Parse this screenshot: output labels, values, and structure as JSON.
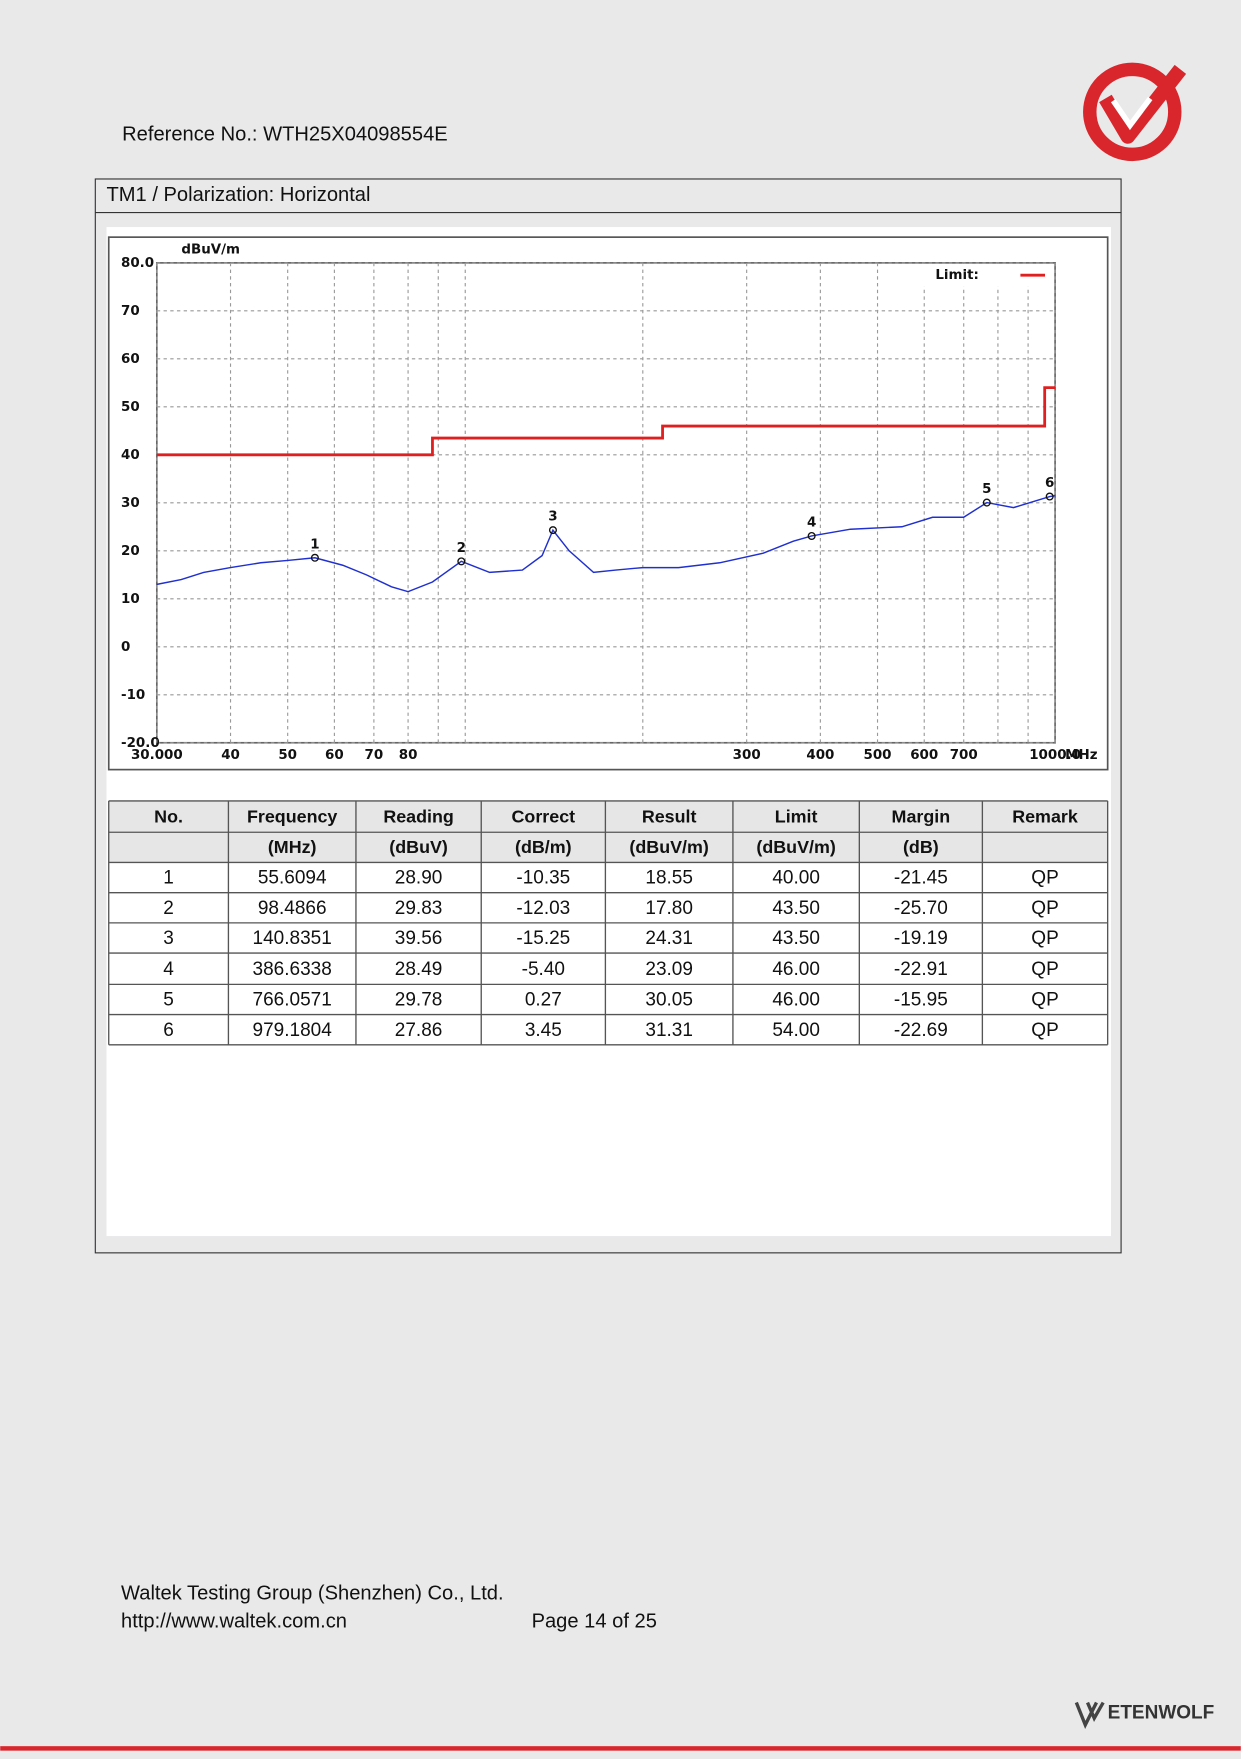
{
  "header": {
    "reference": "Reference No.: WTH25X04098554E"
  },
  "section": {
    "title": "TM1 / Polarization: Horizontal"
  },
  "chart_data": {
    "type": "line",
    "y_label": "dBuV/m",
    "x_unit": "MHz",
    "xscale": "log",
    "xlim": [
      30,
      1000
    ],
    "ylim": [
      -20,
      80
    ],
    "xticks": [
      {
        "value": 30,
        "label": "30.000"
      },
      40,
      50,
      60,
      70,
      80,
      300,
      400,
      500,
      600,
      700,
      {
        "value": 1000,
        "label": "1000.0"
      }
    ],
    "xgrid_minor": [
      90,
      100,
      200,
      800,
      900
    ],
    "yticks": [
      {
        "value": -20,
        "label": "-20.0"
      },
      -10,
      0,
      10,
      20,
      30,
      40,
      50,
      60,
      70,
      {
        "value": 80,
        "label": "80.0"
      }
    ],
    "grid": true,
    "legend": "top-right",
    "series": [
      {
        "name": "Limit:",
        "color": "#e02020",
        "x": [
          30,
          88,
          88,
          216,
          216,
          960,
          960,
          1000
        ],
        "values": [
          40,
          40,
          43.5,
          43.5,
          46,
          46,
          54,
          54
        ]
      },
      {
        "color": "#2030d0",
        "legend": false,
        "x": [
          30,
          33,
          36,
          40,
          45,
          50,
          55.6,
          62,
          68,
          75,
          80,
          88,
          98.5,
          110,
          125,
          135,
          140.8,
          150,
          165,
          180,
          200,
          230,
          270,
          320,
          360,
          386.6,
          450,
          550,
          620,
          700,
          766,
          850,
          979.2,
          1000
        ],
        "values": [
          13,
          14,
          15.5,
          16.5,
          17.5,
          18,
          18.55,
          17,
          15,
          12.5,
          11.5,
          13.5,
          17.8,
          15.5,
          16,
          19,
          24.31,
          20,
          15.5,
          16,
          16.5,
          16.5,
          17.5,
          19.5,
          22,
          23.09,
          24.5,
          25,
          27,
          27,
          30.05,
          29,
          31.31,
          31.5
        ]
      }
    ],
    "markers": [
      {
        "label": "1",
        "x": 55.6094,
        "value": 18.55
      },
      {
        "label": "2",
        "x": 98.4866,
        "value": 17.8
      },
      {
        "label": "3",
        "x": 140.8351,
        "value": 24.31
      },
      {
        "label": "4",
        "x": 386.6338,
        "value": 23.09
      },
      {
        "label": "5",
        "x": 766.0571,
        "value": 30.05
      },
      {
        "label": "6",
        "x": 979.1804,
        "value": 31.31
      }
    ]
  },
  "table": {
    "header": [
      "No.",
      "Frequency",
      "Reading",
      "Correct",
      "Result",
      "Limit",
      "Margin",
      "Remark"
    ],
    "units": [
      null,
      "(MHz)",
      "(dBuV)",
      "(dB/m)",
      "(dBuV/m)",
      "(dBuV/m)",
      "(dB)",
      null
    ],
    "rows": [
      [
        "1",
        "55.6094",
        "28.90",
        "-10.35",
        "18.55",
        "40.00",
        "-21.45",
        "QP"
      ],
      [
        "2",
        "98.4866",
        "29.83",
        "-12.03",
        "17.80",
        "43.50",
        "-25.70",
        "QP"
      ],
      [
        "3",
        "140.8351",
        "39.56",
        "-15.25",
        "24.31",
        "43.50",
        "-19.19",
        "QP"
      ],
      [
        "4",
        "386.6338",
        "28.49",
        "-5.40",
        "23.09",
        "46.00",
        "-22.91",
        "QP"
      ],
      [
        "5",
        "766.0571",
        "29.78",
        "0.27",
        "30.05",
        "46.00",
        "-15.95",
        "QP"
      ],
      [
        "6",
        "979.1804",
        "27.86",
        "3.45",
        "31.31",
        "54.00",
        "-22.69",
        "QP"
      ]
    ]
  },
  "footer": {
    "company": "Waltek Testing Group (Shenzhen) Co., Ltd.",
    "url": "http://www.waltek.com.cn",
    "page": "Page 14 of 25",
    "brand": "ETENWOLF"
  }
}
